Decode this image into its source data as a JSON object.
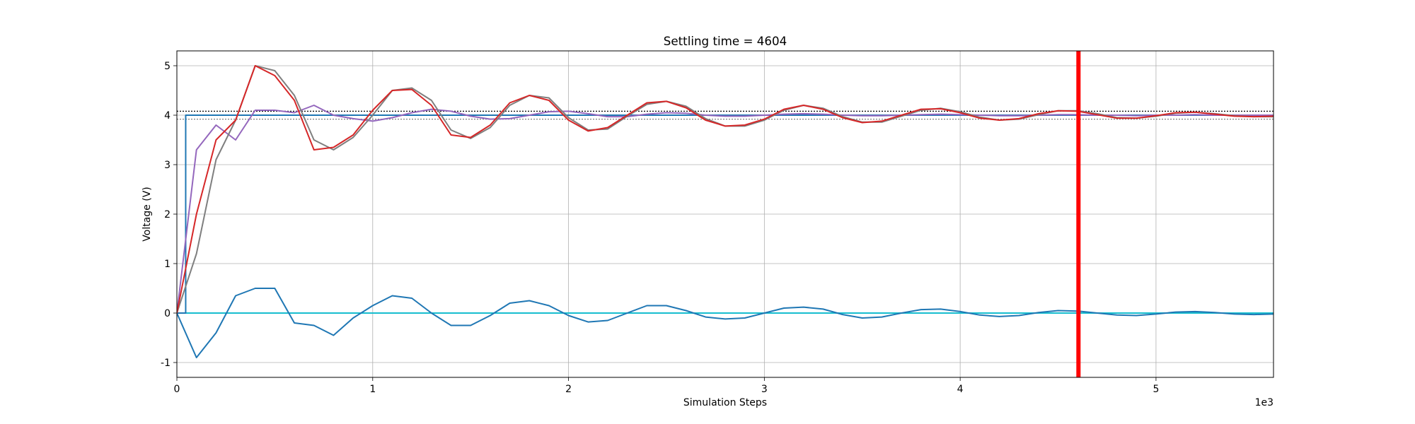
{
  "chart_data": {
    "type": "line",
    "title": "Settling time = 4604",
    "xlabel": "Simulation Steps",
    "ylabel": "Voltage (V)",
    "x_offset_label": "1e3",
    "grid": true,
    "xlim": [
      0,
      5600
    ],
    "ylim": [
      -1.3,
      5.3
    ],
    "xticks": [
      0,
      {
        "value": 1000,
        "label": "1"
      },
      {
        "value": 2000,
        "label": "2"
      },
      {
        "value": 3000,
        "label": "3"
      },
      {
        "value": 4000,
        "label": "4"
      },
      {
        "value": 5000,
        "label": "5"
      }
    ],
    "yticks": [
      -1,
      0,
      1,
      2,
      3,
      4,
      5
    ],
    "x": [
      0,
      100,
      200,
      300,
      400,
      500,
      600,
      700,
      800,
      900,
      1000,
      1100,
      1200,
      1300,
      1400,
      1500,
      1600,
      1700,
      1800,
      1900,
      2000,
      2100,
      2200,
      2300,
      2400,
      2500,
      2600,
      2700,
      2800,
      2900,
      3000,
      3100,
      3200,
      3300,
      3400,
      3500,
      3600,
      3700,
      3800,
      3900,
      4000,
      4100,
      4200,
      4300,
      4400,
      4500,
      4600,
      4700,
      4800,
      4900,
      5000,
      5100,
      5200,
      5300,
      5400,
      5500,
      5600
    ],
    "hlines": [
      {
        "y": 4.08,
        "color": "#000000"
      },
      {
        "y": 3.92,
        "color": "#7f7f7f"
      }
    ],
    "vline": {
      "x": 4604,
      "color": "#ff0000"
    },
    "series": [
      {
        "color": "#17becf",
        "x": [
          0,
          5600
        ],
        "values": [
          0,
          0
        ]
      },
      {
        "color": "#1f77b4",
        "x": [
          0,
          45,
          45,
          5600
        ],
        "values": [
          0,
          0,
          4,
          4
        ]
      },
      {
        "color": "#1f77b4",
        "values": [
          0,
          -0.9,
          -0.4,
          0.35,
          0.5,
          0.5,
          -0.2,
          -0.25,
          -0.45,
          -0.1,
          0.15,
          0.35,
          0.3,
          0.0,
          -0.25,
          -0.25,
          -0.05,
          0.2,
          0.25,
          0.15,
          -0.05,
          -0.18,
          -0.15,
          0.0,
          0.15,
          0.15,
          0.05,
          -0.08,
          -0.12,
          -0.1,
          0.0,
          0.1,
          0.12,
          0.08,
          -0.03,
          -0.1,
          -0.08,
          0.0,
          0.07,
          0.08,
          0.03,
          -0.04,
          -0.07,
          -0.05,
          0.01,
          0.05,
          0.04,
          0.0,
          -0.04,
          -0.05,
          -0.02,
          0.02,
          0.03,
          0.01,
          -0.02,
          -0.03,
          -0.02
        ]
      },
      {
        "color": "#9467bd",
        "values": [
          0,
          3.3,
          3.8,
          3.5,
          4.1,
          4.1,
          4.05,
          4.2,
          4.0,
          3.93,
          3.88,
          3.95,
          4.05,
          4.12,
          4.08,
          3.98,
          3.92,
          3.93,
          4.0,
          4.07,
          4.08,
          4.03,
          3.97,
          3.97,
          4.02,
          4.05,
          4.04,
          4.0,
          3.98,
          3.98,
          4.0,
          4.02,
          4.03,
          4.02,
          4.0,
          3.99,
          3.99,
          4.0,
          4.01,
          4.02,
          4.01,
          4.0,
          3.99,
          3.99,
          4.0,
          4.01,
          4.01,
          4.0,
          4.0,
          3.99,
          4.0,
          4.0,
          4.01,
          4.0,
          4.0,
          4.0,
          4.0
        ]
      },
      {
        "color": "#7f7f7f",
        "values": [
          0,
          1.2,
          3.1,
          3.9,
          5.0,
          4.9,
          4.4,
          3.5,
          3.3,
          3.55,
          4.0,
          4.5,
          4.55,
          4.3,
          3.7,
          3.53,
          3.75,
          4.2,
          4.4,
          4.35,
          3.95,
          3.7,
          3.72,
          3.98,
          4.22,
          4.28,
          4.18,
          3.93,
          3.78,
          3.78,
          3.9,
          4.1,
          4.2,
          4.14,
          3.97,
          3.86,
          3.86,
          3.98,
          4.1,
          4.14,
          4.07,
          3.96,
          3.9,
          3.92,
          4.01,
          4.09,
          4.09,
          4.03,
          3.95,
          3.94,
          3.98,
          4.04,
          4.06,
          4.03,
          3.99,
          3.97,
          3.97
        ]
      },
      {
        "color": "#d62728",
        "values": [
          0,
          2.0,
          3.5,
          3.9,
          5.0,
          4.8,
          4.3,
          3.3,
          3.35,
          3.6,
          4.1,
          4.5,
          4.52,
          4.2,
          3.6,
          3.55,
          3.8,
          4.25,
          4.4,
          4.3,
          3.9,
          3.68,
          3.75,
          4.0,
          4.25,
          4.28,
          4.15,
          3.9,
          3.78,
          3.8,
          3.92,
          4.12,
          4.2,
          4.12,
          3.95,
          3.85,
          3.88,
          4.0,
          4.12,
          4.13,
          4.05,
          3.94,
          3.9,
          3.93,
          4.03,
          4.09,
          4.08,
          4.01,
          3.94,
          3.94,
          3.99,
          4.05,
          4.06,
          4.02,
          3.98,
          3.97,
          3.98
        ]
      }
    ]
  }
}
